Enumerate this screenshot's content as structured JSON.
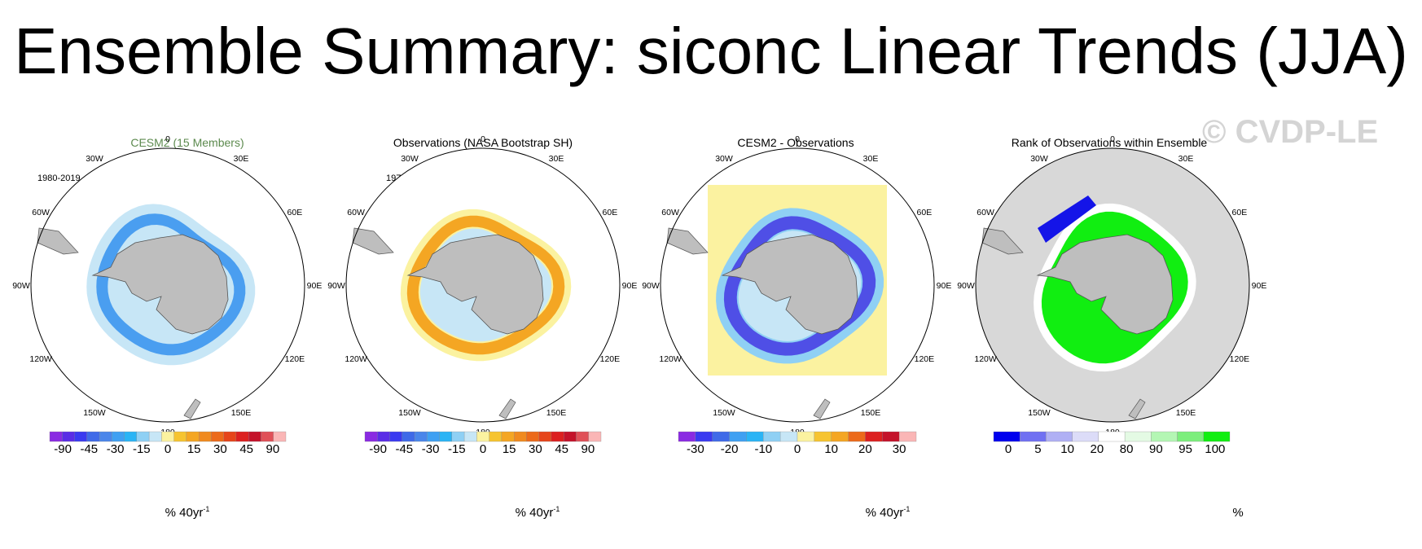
{
  "title": "Ensemble Summary: siconc Linear Trends (JJA)",
  "watermark": "© CVDP-LE",
  "longitude_labels": [
    "0",
    "30E",
    "60E",
    "90E",
    "120E",
    "150E",
    "180",
    "150W",
    "120W",
    "90W",
    "60W",
    "30W"
  ],
  "panels": [
    {
      "title": "CESM2 (15 Members)",
      "period": "1980-2019",
      "colorbar": {
        "tick_labels": [
          "-90",
          "-45",
          "-30",
          "-15",
          "0",
          "15",
          "30",
          "45",
          "90"
        ],
        "unit": "% 40yr",
        "unit_sup": "-1"
      }
    },
    {
      "title": "Observations (NASA Bootstrap SH)",
      "period": "1979-2016",
      "colorbar": {
        "tick_labels": [
          "-90",
          "-45",
          "-30",
          "-15",
          "0",
          "15",
          "30",
          "45",
          "90"
        ],
        "unit": "% 40yr",
        "unit_sup": "-1"
      }
    },
    {
      "title": "CESM2 - Observations",
      "period": "",
      "colorbar": {
        "tick_labels": [
          "-30",
          "-20",
          "-10",
          "0",
          "10",
          "20",
          "30"
        ],
        "unit": "% 40yr",
        "unit_sup": "-1"
      }
    },
    {
      "title": "Rank of Observations within Ensemble",
      "period": "",
      "colorbar": {
        "tick_labels": [
          "0",
          "5",
          "10",
          "20",
          "80",
          "90",
          "95",
          "100"
        ],
        "unit": "%",
        "unit_sup": ""
      }
    }
  ],
  "colors": {
    "trend_scale": [
      "#8a2be2",
      "#5a2de6",
      "#3a3af0",
      "#3f6ae8",
      "#4a86ea",
      "#3fa0f2",
      "#2ab4f5",
      "#8fd0f4",
      "#c7e6f6",
      "#fbf2a0",
      "#f6c430",
      "#f4a623",
      "#f08a1f",
      "#ec6a1a",
      "#e6451a",
      "#dc2020",
      "#c4122a",
      "#e05058",
      "#fab6b6"
    ],
    "diff_scale": [
      "#8a2be2",
      "#3a3af0",
      "#3f6ae8",
      "#3fa0f2",
      "#2ab4f5",
      "#8fd0f4",
      "#c7e6f6",
      "#fbf2a0",
      "#f6c430",
      "#f4a623",
      "#ec6a1a",
      "#dc2020",
      "#c4122a",
      "#fab6b6"
    ],
    "rank_scale": [
      "#0000ee",
      "#7070f2",
      "#b0b0f4",
      "#dcdcf8",
      "#ffffff",
      "#e4fae4",
      "#b4f6b4",
      "#7cee7c",
      "#11ee11"
    ],
    "land": "#bebebe",
    "ocean_rank_panel": "#d8d8d8"
  }
}
